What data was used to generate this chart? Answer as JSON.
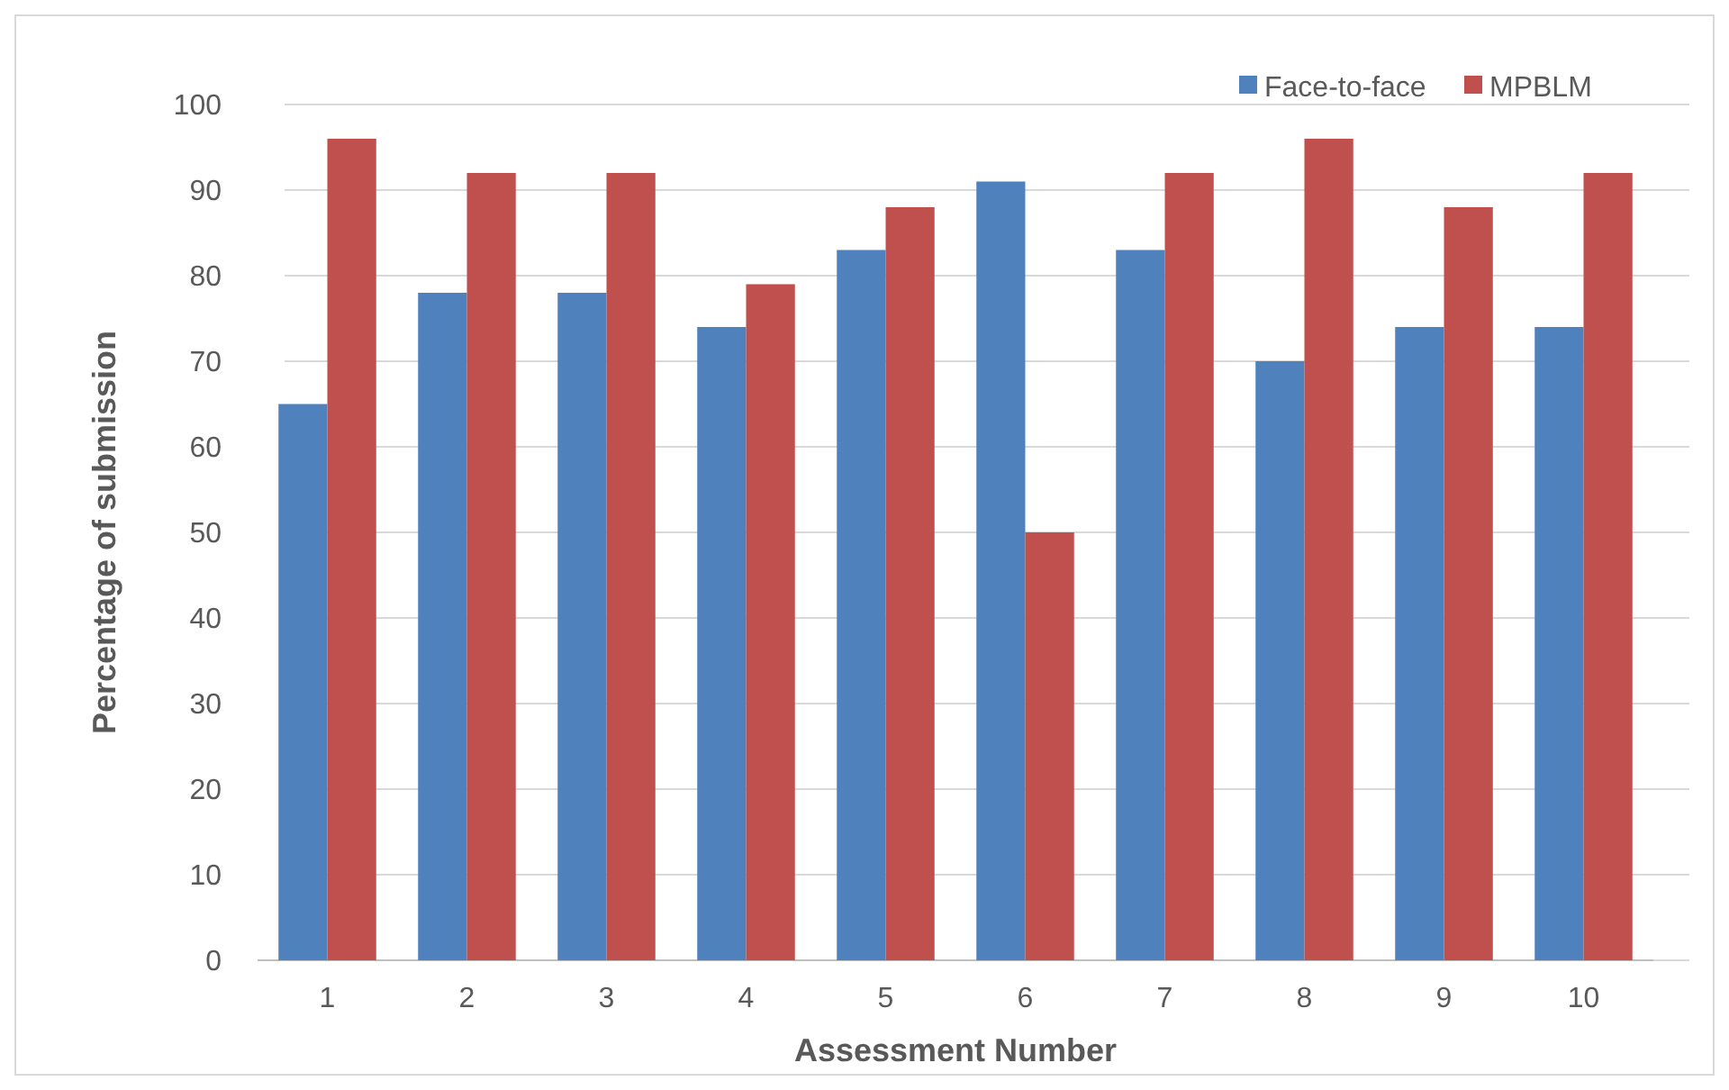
{
  "chart_data": {
    "type": "bar",
    "xlabel": "Assessment Number",
    "ylabel": "Percentage of submission",
    "categories": [
      "1",
      "2",
      "3",
      "4",
      "5",
      "6",
      "7",
      "8",
      "9",
      "10"
    ],
    "series": [
      {
        "name": "Face-to-face",
        "color": "#4f81bd",
        "values": [
          65,
          78,
          78,
          74,
          83,
          91,
          83,
          70,
          74,
          74
        ]
      },
      {
        "name": "MPBLM",
        "color": "#c0504d",
        "values": [
          96,
          92,
          92,
          79,
          88,
          50,
          92,
          96,
          88,
          92
        ]
      }
    ],
    "ylim": [
      0,
      100
    ],
    "yticks": [
      0,
      10,
      20,
      30,
      40,
      50,
      60,
      70,
      80,
      90,
      100
    ],
    "grid": "y",
    "legend": "top right"
  }
}
